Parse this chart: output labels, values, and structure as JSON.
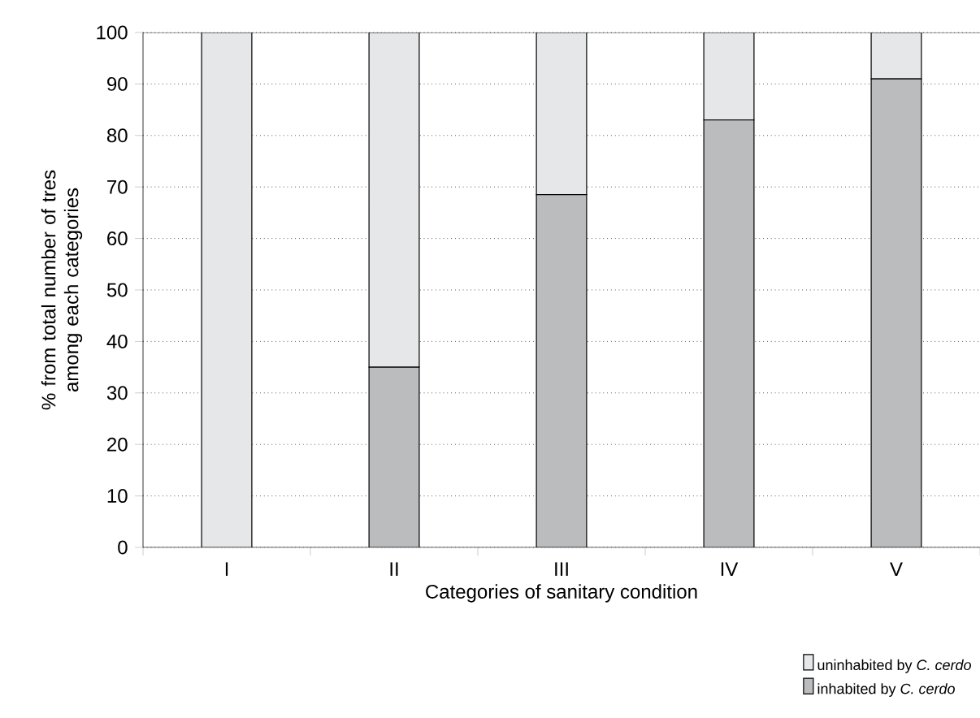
{
  "chart_data": {
    "type": "bar",
    "stacked": true,
    "xlabel": "Categories of sanitary condition",
    "ylabel": "% from total number of tres among each categories",
    "categories": [
      "I",
      "II",
      "III",
      "IV",
      "V"
    ],
    "series": [
      {
        "name": "inhabited by *C. cerdo*",
        "color": "#bbbcbe",
        "values": [
          0,
          35,
          68.5,
          83,
          91
        ]
      },
      {
        "name": "uninhabited by *C. cerdo*",
        "color": "#e6e7e8",
        "values": [
          100,
          65,
          31.5,
          17,
          9
        ]
      }
    ],
    "ylim": [
      0,
      100
    ],
    "yticks": [
      0,
      10,
      20,
      30,
      40,
      50,
      60,
      70,
      80,
      90,
      100
    ],
    "grid": "y",
    "legend": "bottom right"
  }
}
